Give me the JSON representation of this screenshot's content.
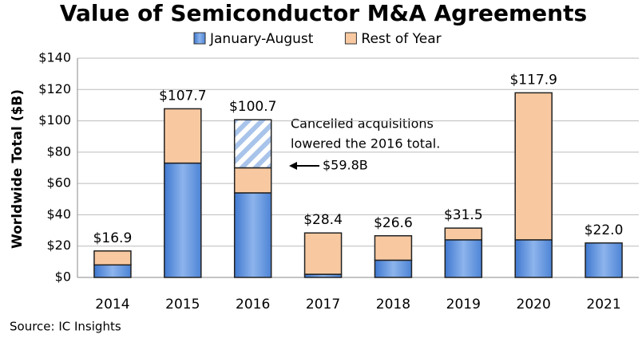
{
  "chart_data": {
    "type": "stacked_bar",
    "title": "Value of Semiconductor M&A Agreements",
    "y_label": "Worldwide Total ($B)",
    "source": "Source: IC Insights",
    "categories": [
      "2014",
      "2015",
      "2016",
      "2017",
      "2018",
      "2019",
      "2020",
      "2021"
    ],
    "series": [
      {
        "name": "January-August",
        "color": "#6a9be0",
        "values": [
          8,
          73,
          54,
          2,
          11,
          24,
          24,
          22
        ]
      },
      {
        "name": "Rest of Year",
        "color": "#f8c9a1",
        "values": [
          8.9,
          34.7,
          16,
          26.4,
          15.6,
          7.5,
          93.9,
          0
        ]
      },
      {
        "color": "#a9c4ea",
        "hatch": true,
        "values": [
          null,
          null,
          30.7,
          null,
          null,
          null,
          null,
          null
        ]
      }
    ],
    "totals": [
      16.9,
      107.7,
      100.7,
      28.4,
      26.6,
      31.5,
      117.9,
      22.0
    ],
    "total_labels": [
      "$16.9",
      "$107.7",
      "$100.7",
      "$28.4",
      "$26.6",
      "$31.5",
      "$117.9",
      "$22.0"
    ],
    "annotations": [
      "Cancelled acquisitions",
      "lowered the 2016 total.",
      "$59.8B"
    ],
    "ylim": [
      0,
      140
    ],
    "yticks": [
      {
        "value": 0,
        "label": "$0"
      },
      {
        "value": 20,
        "label": "$20"
      },
      {
        "value": 40,
        "label": "$40"
      },
      {
        "value": 60,
        "label": "$60"
      },
      {
        "value": 80,
        "label": "$80"
      },
      {
        "value": 100,
        "label": "$100"
      },
      {
        "value": 120,
        "label": "$120"
      },
      {
        "value": 140,
        "label": "$140"
      }
    ],
    "grid": true,
    "legend": "top"
  }
}
